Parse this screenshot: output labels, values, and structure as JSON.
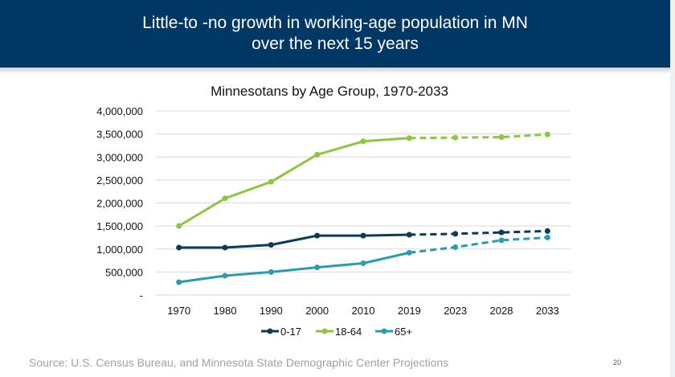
{
  "slide": {
    "title_line1": "Little-to -no growth in working-age population in MN",
    "title_line2": "over the next 15 years",
    "source": "Source: U.S. Census Bureau, and Minnesota State Demographic Center Projections",
    "page_number": "20"
  },
  "colors": {
    "header_bg": "#003865",
    "series_0_17": "#0b3a5b",
    "series_18_64": "#8dc63f",
    "series_65_plus": "#2b9bae",
    "gridline": "#d9d9d9"
  },
  "chart_data": {
    "type": "line",
    "title": "Minnesotans by Age Group, 1970-2033",
    "xlabel": "",
    "ylabel": "",
    "categories": [
      "1970",
      "1980",
      "1990",
      "2000",
      "2010",
      "2019",
      "2023",
      "2028",
      "2033"
    ],
    "projection_start_index": 5,
    "ylim": [
      0,
      4000000
    ],
    "yticks": [
      0,
      500000,
      1000000,
      1500000,
      2000000,
      2500000,
      3000000,
      3500000,
      4000000
    ],
    "ytick_labels": [
      "-",
      "500,000",
      "1,000,000",
      "1,500,000",
      "2,000,000",
      "2,500,000",
      "3,000,000",
      "3,500,000",
      "4,000,000"
    ],
    "grid": true,
    "legend_position": "bottom",
    "series": [
      {
        "name": "0-17",
        "color": "#0b3a5b",
        "values": [
          1030000,
          1030000,
          1090000,
          1290000,
          1290000,
          1310000,
          1330000,
          1360000,
          1390000
        ]
      },
      {
        "name": "18-64",
        "color": "#8dc63f",
        "values": [
          1500000,
          2100000,
          2460000,
          3050000,
          3340000,
          3410000,
          3420000,
          3430000,
          3490000
        ]
      },
      {
        "name": "65+",
        "color": "#2b9bae",
        "values": [
          280000,
          420000,
          500000,
          600000,
          690000,
          920000,
          1040000,
          1190000,
          1250000
        ]
      }
    ]
  }
}
